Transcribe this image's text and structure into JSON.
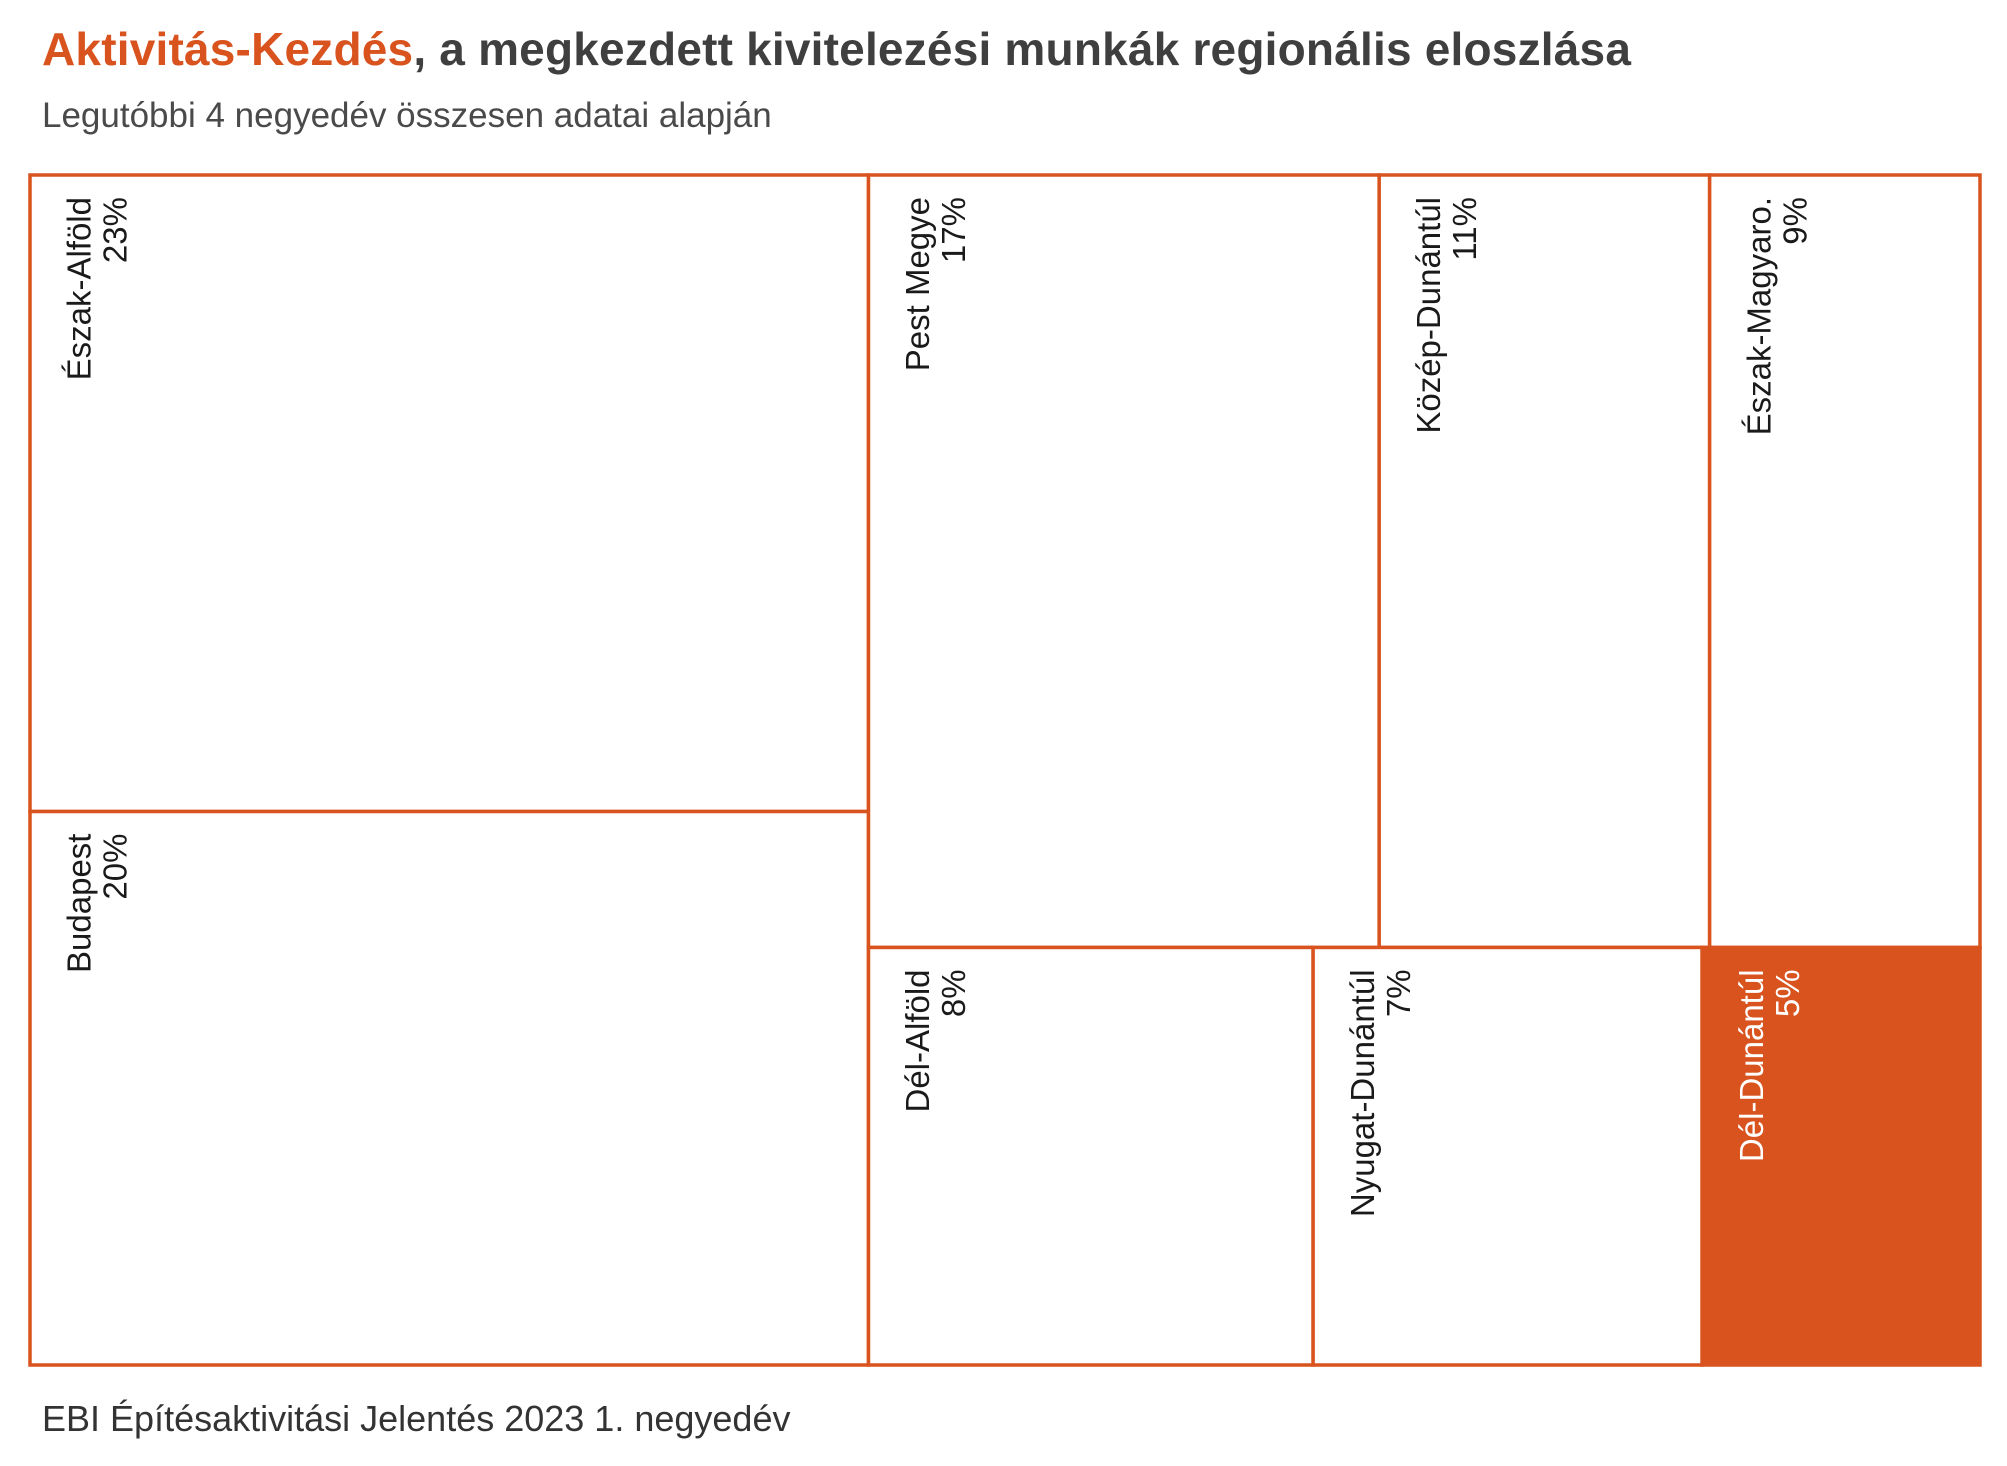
{
  "title": {
    "highlight": "Aktivitás-Kezdés",
    "rest": ", a megkezdett kivitelezési munkák regionális eloszlása"
  },
  "subtitle": "Legutóbbi 4 negyedév összesen adatai alapján",
  "source": "EBI Építésaktivitási Jelentés 2023 1. negyedév",
  "colors": {
    "accent": "#d9531f",
    "border": "#d9531f",
    "text": "#1a1a1a",
    "highlight_text": "#ffffff"
  },
  "chart_data": {
    "type": "treemap",
    "unit": "%",
    "items": [
      {
        "label": "Észak-Alföld",
        "value": 23,
        "value_label": "23%",
        "highlight": false
      },
      {
        "label": "Budapest",
        "value": 20,
        "value_label": "20%",
        "highlight": false
      },
      {
        "label": "Pest Megye",
        "value": 17,
        "value_label": "17%",
        "highlight": false
      },
      {
        "label": "Közép-Dunántúl",
        "value": 11,
        "value_label": "11%",
        "highlight": false
      },
      {
        "label": "Észak-Magyaro.",
        "value": 9,
        "value_label": "9%",
        "highlight": false
      },
      {
        "label": "Dél-Alföld",
        "value": 8,
        "value_label": "8%",
        "highlight": false
      },
      {
        "label": "Nyugat-Dunántúl",
        "value": 7,
        "value_label": "7%",
        "highlight": false
      },
      {
        "label": "Dél-Dunántúl",
        "value": 5,
        "value_label": "5%",
        "highlight": true
      }
    ]
  }
}
